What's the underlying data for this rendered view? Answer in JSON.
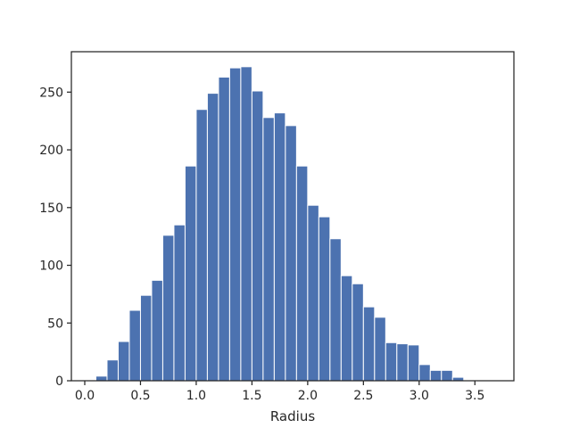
{
  "chart_data": {
    "type": "bar",
    "title": "",
    "xlabel": "Radius",
    "ylabel": "",
    "xlim": [
      -0.12,
      3.85
    ],
    "ylim": [
      0,
      285
    ],
    "grid": false,
    "colors": {
      "bar": "#4c72b0",
      "bar_edge": "#ffffff",
      "axes": "#262626"
    },
    "x_ticks": [
      {
        "value": 0.0,
        "label": "0.0"
      },
      {
        "value": 0.5,
        "label": "0.5"
      },
      {
        "value": 1.0,
        "label": "1.0"
      },
      {
        "value": 1.5,
        "label": "1.5"
      },
      {
        "value": 2.0,
        "label": "2.0"
      },
      {
        "value": 2.5,
        "label": "2.5"
      },
      {
        "value": 3.0,
        "label": "3.0"
      },
      {
        "value": 3.5,
        "label": "3.5"
      }
    ],
    "y_ticks": [
      {
        "value": 0,
        "label": "0"
      },
      {
        "value": 50,
        "label": "50"
      },
      {
        "value": 100,
        "label": "100"
      },
      {
        "value": 150,
        "label": "150"
      },
      {
        "value": 200,
        "label": "200"
      },
      {
        "value": 250,
        "label": "250"
      }
    ],
    "bins": [
      {
        "start": 0.0,
        "end": 0.1,
        "value": 0
      },
      {
        "start": 0.1,
        "end": 0.2,
        "value": 4
      },
      {
        "start": 0.2,
        "end": 0.3,
        "value": 18
      },
      {
        "start": 0.3,
        "end": 0.4,
        "value": 34
      },
      {
        "start": 0.4,
        "end": 0.5,
        "value": 61
      },
      {
        "start": 0.5,
        "end": 0.6,
        "value": 74
      },
      {
        "start": 0.6,
        "end": 0.7,
        "value": 87
      },
      {
        "start": 0.7,
        "end": 0.8,
        "value": 126
      },
      {
        "start": 0.8,
        "end": 0.9,
        "value": 135
      },
      {
        "start": 0.9,
        "end": 1.0,
        "value": 186
      },
      {
        "start": 1.0,
        "end": 1.1,
        "value": 235
      },
      {
        "start": 1.1,
        "end": 1.2,
        "value": 249
      },
      {
        "start": 1.2,
        "end": 1.3,
        "value": 263
      },
      {
        "start": 1.3,
        "end": 1.4,
        "value": 271
      },
      {
        "start": 1.4,
        "end": 1.5,
        "value": 272
      },
      {
        "start": 1.5,
        "end": 1.6,
        "value": 251
      },
      {
        "start": 1.6,
        "end": 1.7,
        "value": 228
      },
      {
        "start": 1.7,
        "end": 1.8,
        "value": 232
      },
      {
        "start": 1.8,
        "end": 1.9,
        "value": 221
      },
      {
        "start": 1.9,
        "end": 2.0,
        "value": 186
      },
      {
        "start": 2.0,
        "end": 2.1,
        "value": 152
      },
      {
        "start": 2.1,
        "end": 2.2,
        "value": 142
      },
      {
        "start": 2.2,
        "end": 2.3,
        "value": 123
      },
      {
        "start": 2.3,
        "end": 2.4,
        "value": 91
      },
      {
        "start": 2.4,
        "end": 2.5,
        "value": 84
      },
      {
        "start": 2.5,
        "end": 2.6,
        "value": 64
      },
      {
        "start": 2.6,
        "end": 2.7,
        "value": 55
      },
      {
        "start": 2.7,
        "end": 2.8,
        "value": 33
      },
      {
        "start": 2.8,
        "end": 2.9,
        "value": 32
      },
      {
        "start": 2.9,
        "end": 3.0,
        "value": 31
      },
      {
        "start": 3.0,
        "end": 3.1,
        "value": 14
      },
      {
        "start": 3.1,
        "end": 3.2,
        "value": 9
      },
      {
        "start": 3.2,
        "end": 3.3,
        "value": 9
      },
      {
        "start": 3.3,
        "end": 3.4,
        "value": 3
      },
      {
        "start": 3.4,
        "end": 3.5,
        "value": 0
      },
      {
        "start": 3.5,
        "end": 3.6,
        "value": 0
      }
    ]
  }
}
